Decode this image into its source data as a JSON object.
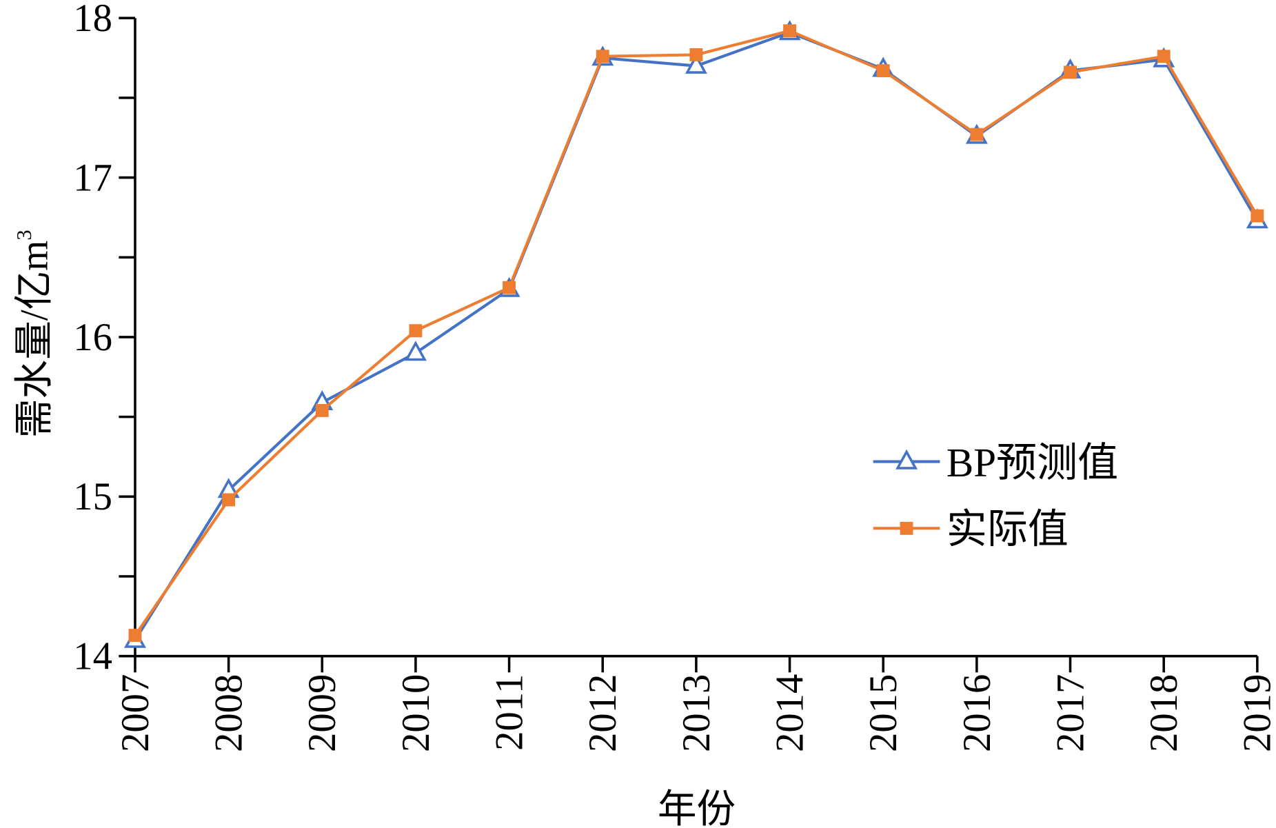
{
  "chart_data": {
    "type": "line",
    "title": "",
    "xlabel": "年份",
    "ylabel": "需水量/亿m³",
    "ylabel_main": "需水量/亿m",
    "ylabel_sup": "3",
    "x": [
      "2007",
      "2008",
      "2009",
      "2010",
      "2011",
      "2012",
      "2013",
      "2014",
      "2015",
      "2016",
      "2017",
      "2018",
      "2019"
    ],
    "ylim": [
      14,
      18
    ],
    "yticks": [
      "14",
      "15",
      "16",
      "17",
      "18"
    ],
    "grid": false,
    "legend_position": "center-right",
    "series": [
      {
        "name": "BP预测值",
        "color": "#4472C4",
        "marker": "triangle-open",
        "values": [
          14.1,
          15.04,
          15.59,
          15.9,
          16.3,
          17.75,
          17.7,
          17.91,
          17.68,
          17.26,
          17.67,
          17.74,
          16.73
        ]
      },
      {
        "name": "实际值",
        "color": "#ED7D31",
        "marker": "square",
        "values": [
          14.13,
          14.98,
          15.54,
          16.04,
          16.31,
          17.76,
          17.77,
          17.92,
          17.67,
          17.27,
          17.66,
          17.76,
          16.76
        ]
      }
    ]
  }
}
